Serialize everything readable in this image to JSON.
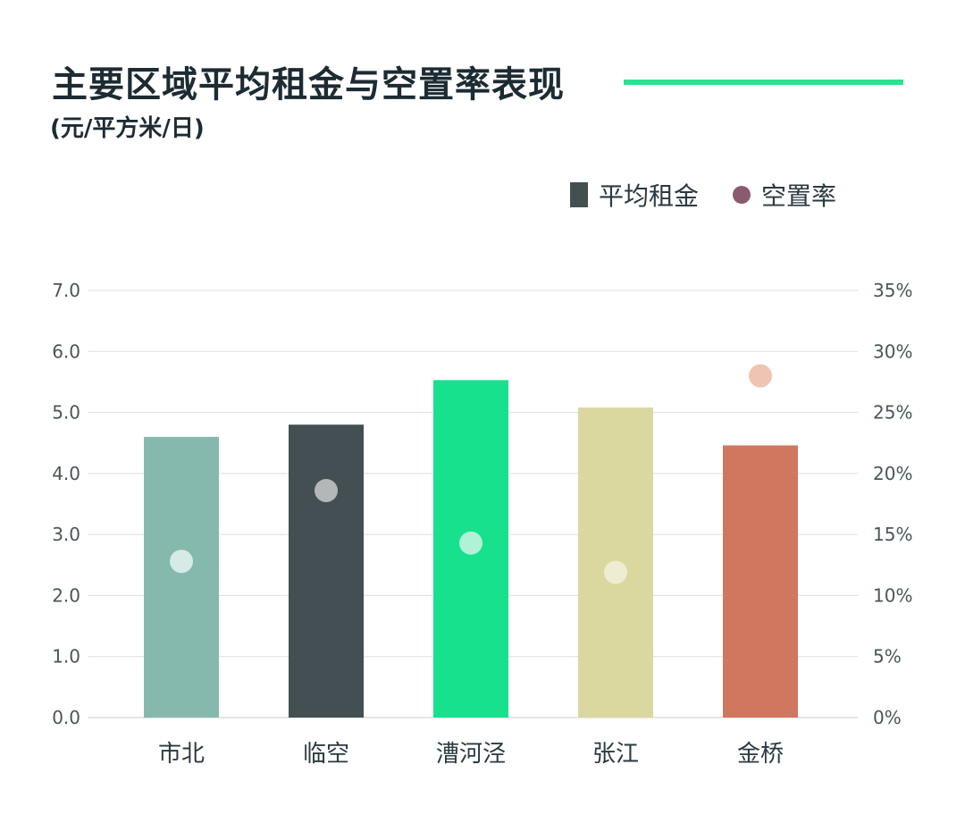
{
  "header": {
    "title": "主要区域平均租金与空置率表现",
    "subtitle": "(元/平方米/日)"
  },
  "legend": {
    "rent_label": "平均租金",
    "vacancy_label": "空置率"
  },
  "chart_data": {
    "type": "bar",
    "categories": [
      "市北",
      "临空",
      "漕河泾",
      "张江",
      "金桥"
    ],
    "series": [
      {
        "name": "平均租金",
        "axis": "left",
        "values": [
          4.6,
          4.8,
          5.53,
          5.08,
          4.46
        ],
        "colors": [
          "#86b9ad",
          "#434f52",
          "#17e18d",
          "#dad79f",
          "#d1765f"
        ]
      },
      {
        "name": "空置率",
        "axis": "right",
        "marker": "dot",
        "values": [
          12.8,
          18.6,
          14.3,
          11.9,
          28.0
        ],
        "colors": [
          "#d6ebe5",
          "#b3b7b7",
          "#b0f2d5",
          "#eeecd2",
          "#efc4b2"
        ]
      }
    ],
    "left_axis": {
      "ylim": [
        0,
        7
      ],
      "ticks": [
        "0.0",
        "1.0",
        "2.0",
        "3.0",
        "4.0",
        "5.0",
        "6.0",
        "7.0"
      ]
    },
    "right_axis": {
      "ylim": [
        0,
        35
      ],
      "ticks": [
        "0%",
        "5%",
        "10%",
        "15%",
        "20%",
        "25%",
        "30%",
        "35%"
      ]
    },
    "grid": true,
    "legend_position": "top-right"
  }
}
